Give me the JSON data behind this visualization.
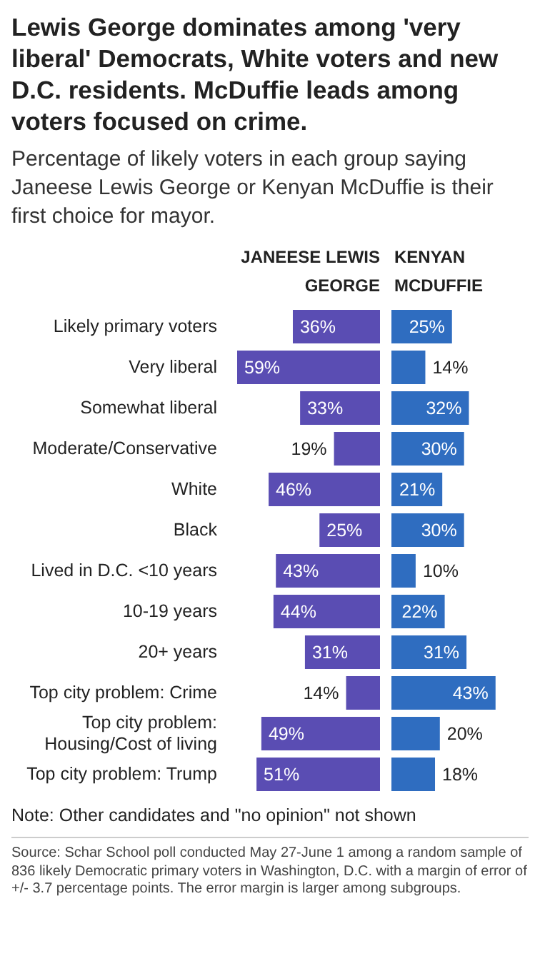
{
  "chart_data": [
    {
      "type": "bar",
      "orientation": "horizontal",
      "title": "Lewis George dominates among 'very liberal' Democrats, White voters and new D.C. residents. McDuffie leads among voters focused on crime.",
      "subtitle": "Percentage of likely voters in each group saying Janeese Lewis George or Kenyan McDuffie is their first choice for mayor.",
      "xlabel": "JANEESE LEWIS GEORGE",
      "categories": [
        "Likely primary voters",
        "Very liberal",
        "Somewhat liberal",
        "Moderate/Conservative",
        "White",
        "Black",
        "Lived in D.C. <10 years",
        "10-19 years",
        "20+ years",
        "Top city problem: Crime",
        "Top city problem: Housing/Cost of living",
        "Top city problem: Trump"
      ],
      "values": [
        36,
        59,
        33,
        19,
        46,
        25,
        43,
        44,
        31,
        14,
        49,
        51
      ],
      "value_labels": [
        "36%",
        "59%",
        "33%",
        "19%",
        "46%",
        "25%",
        "43%",
        "44%",
        "31%",
        "14%",
        "49%",
        "51%"
      ],
      "color": "#5a4db3",
      "tick_labels": "y",
      "legend": false,
      "grid": false,
      "annotations": [
        "Note: Other candidates and \"no opinion\" not shown",
        "Source: Schar School poll conducted May 27-June 1 among a random sample of 836 likely Democratic primary voters in Washington, D.C. with a margin of error of +/- 3.7 percentage points. The error margin is larger among subgroups."
      ]
    },
    {
      "type": "bar",
      "orientation": "horizontal",
      "xlabel": "KENYAN MCDUFFIE",
      "values": [
        25,
        14,
        32,
        30,
        21,
        30,
        10,
        22,
        31,
        43,
        20,
        18
      ],
      "value_labels": [
        "25%",
        "14%",
        "32%",
        "30%",
        "21%",
        "30%",
        "10%",
        "22%",
        "31%",
        "43%",
        "20%",
        "18%"
      ],
      "color": "#2f6dc0",
      "tick_labels": false,
      "legend": false,
      "grid": false
    }
  ]
}
